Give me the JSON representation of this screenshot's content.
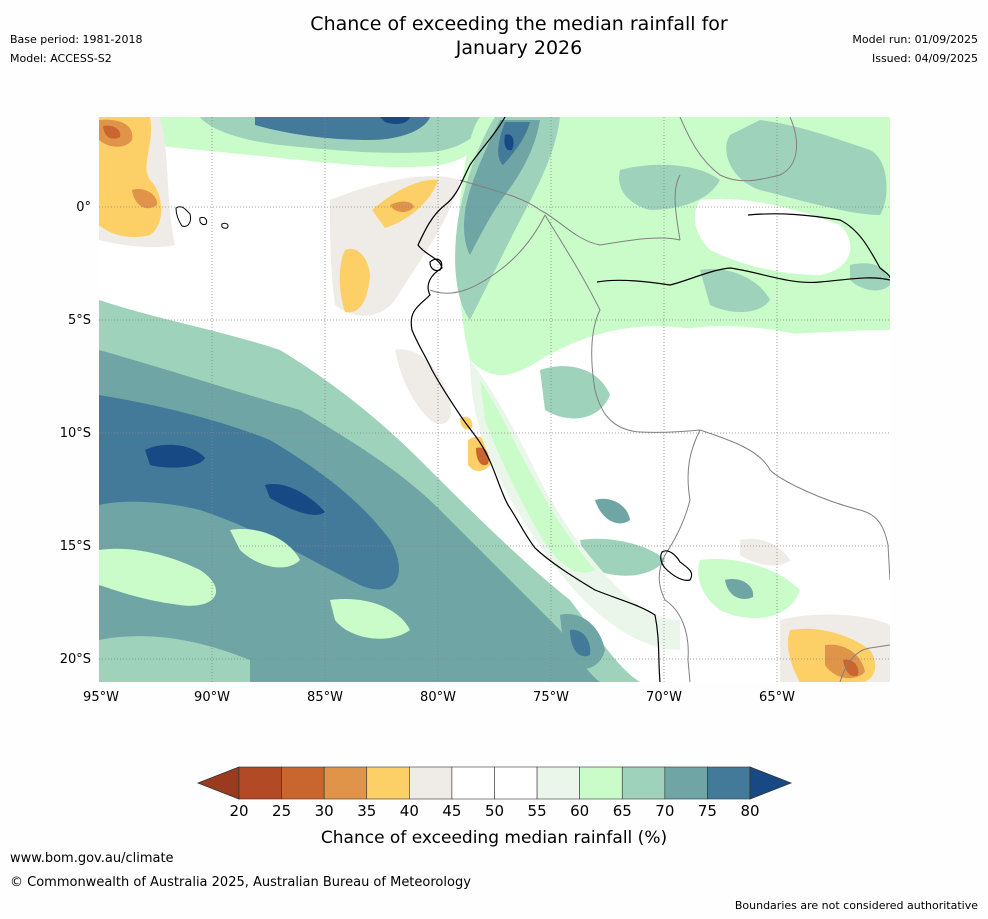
{
  "header": {
    "title_line1": "Chance of exceeding the median rainfall for",
    "title_line2": "January 2026",
    "base_period": "Base period: 1981-2018",
    "model": "Model: ACCESS-S2",
    "model_run": "Model run: 01/09/2025",
    "issued": "Issued: 04/09/2025"
  },
  "map": {
    "lon_labels": [
      "95°W",
      "90°W",
      "85°W",
      "80°W",
      "75°W",
      "70°W",
      "65°W"
    ],
    "lat_labels": [
      "0°",
      "5°S",
      "10°S",
      "15°S",
      "20°S"
    ],
    "colors": {
      "very_dry": "#b34a26",
      "dry": "#c9652f",
      "mod_dry": "#e0944a",
      "slight_dry": "#fdd067",
      "near_neutral_dry": "#efebe7",
      "neutral": "#ffffff",
      "slight_wet": "#eaf6ea",
      "mod_wet": "#c9fcc9",
      "wet": "#9fd2bb",
      "more_wet": "#6fa5a5",
      "very_wet": "#437a99",
      "extreme_wet": "#174a84",
      "coast": "#000000",
      "border": "#808080",
      "grid": "#888888"
    }
  },
  "colorbar": {
    "ticks": [
      "20",
      "25",
      "30",
      "35",
      "40",
      "45",
      "50",
      "55",
      "60",
      "65",
      "70",
      "75",
      "80"
    ],
    "colors": [
      "#b34a26",
      "#c9652f",
      "#e0944a",
      "#fdd067",
      "#efebe7",
      "#ffffff",
      "#ffffff",
      "#eaf6ea",
      "#c9fcc9",
      "#9fd2bb",
      "#6fa5a5",
      "#437a99"
    ],
    "extend_low_color": "#9a3a1e",
    "extend_high_color": "#174a84",
    "label": "Chance of exceeding median rainfall (%)"
  },
  "footer": {
    "website": "www.bom.gov.au/climate",
    "copyright": "© Commonwealth of Australia 2025, Australian Bureau of Meteorology",
    "disclaimer": "Boundaries are not considered authoritative"
  }
}
